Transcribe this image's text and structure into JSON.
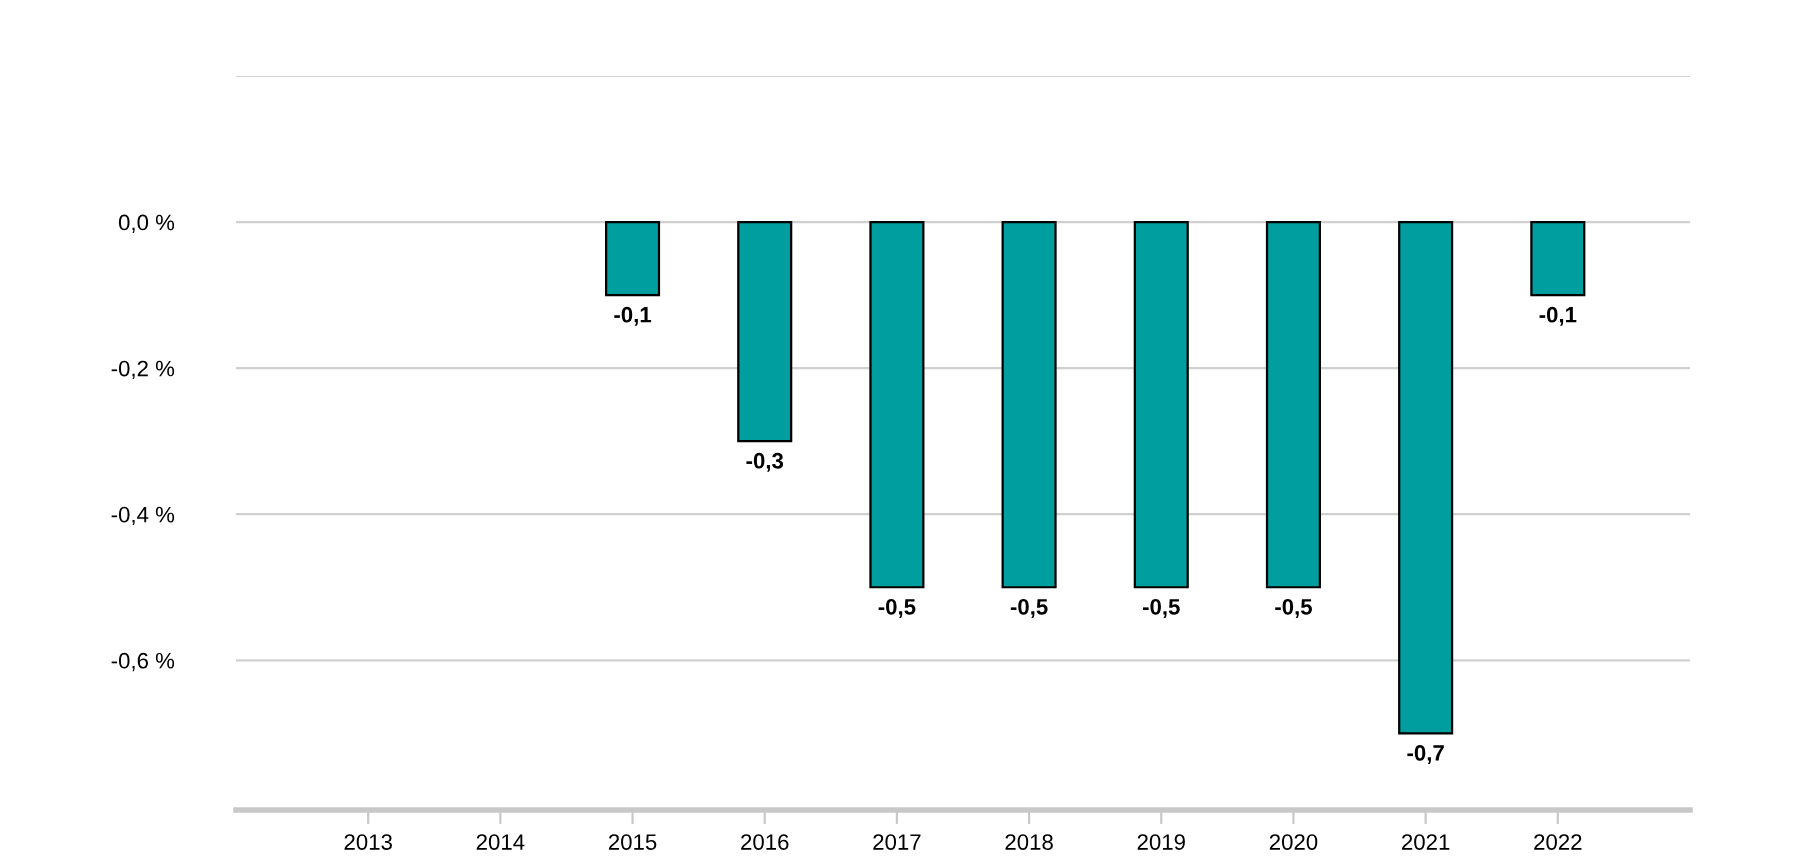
{
  "chart_data": {
    "type": "bar",
    "categories": [
      "2013",
      "2014",
      "2015",
      "2016",
      "2017",
      "2018",
      "2019",
      "2020",
      "2021",
      "2022"
    ],
    "series": [
      {
        "color": "#009e9e",
        "values": [
          null,
          null,
          -0.1,
          -0.3,
          -0.5,
          -0.5,
          -0.5,
          -0.5,
          -0.7,
          -0.1
        ],
        "value_labels": [
          null,
          null,
          "-0,1",
          "-0,3",
          "-0,5",
          "-0,5",
          "-0,5",
          "-0,5",
          "-0,7",
          "-0,1"
        ]
      }
    ],
    "ylim": [
      -0.805,
      0.2
    ],
    "yticks": [
      {
        "value": 0.2,
        "label": null
      },
      {
        "value": 0,
        "label": "0,0 %"
      },
      {
        "value": -0.2,
        "label": "-0,2 %"
      },
      {
        "value": -0.4,
        "label": "-0,4 %"
      },
      {
        "value": -0.6,
        "label": "-0,6 %"
      }
    ],
    "grid": "y"
  }
}
